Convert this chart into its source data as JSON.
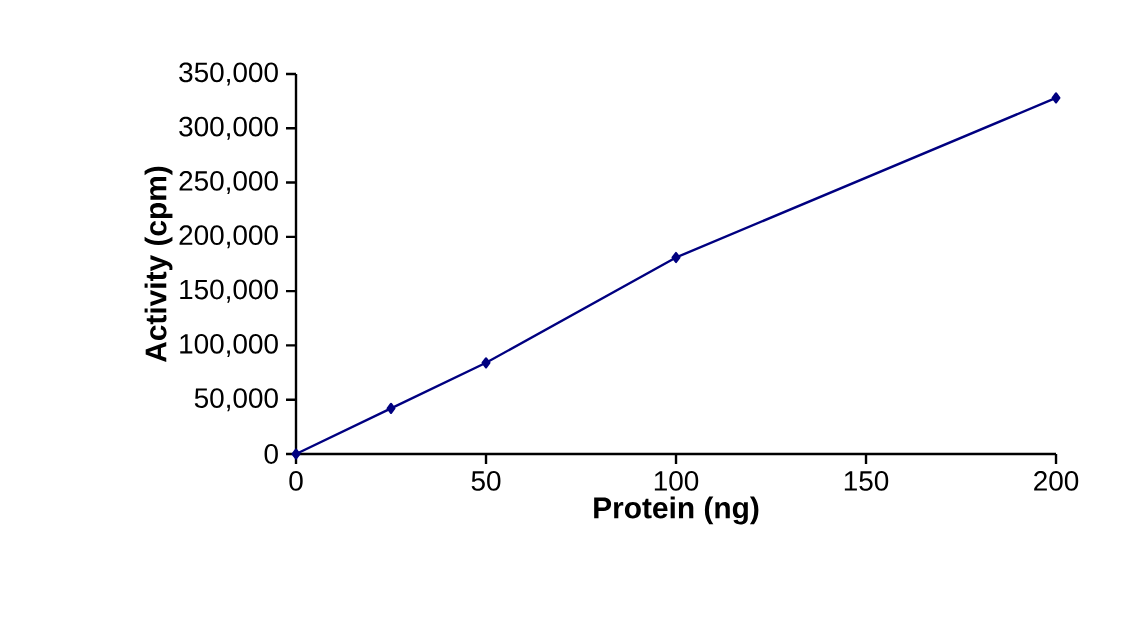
{
  "chart_data": {
    "type": "line",
    "xlabel": "Protein (ng)",
    "ylabel": "Activity (cpm)",
    "x": [
      0,
      25,
      50,
      100,
      200
    ],
    "series": [
      {
        "color": "#000080",
        "values": [
          0,
          42000,
          84000,
          181000,
          328000
        ]
      }
    ],
    "xlim": [
      0,
      200
    ],
    "ylim": [
      0,
      350000
    ],
    "xticks": [
      0,
      50,
      100,
      150,
      200
    ],
    "yticks": [
      {
        "value": 0,
        "label": "0"
      },
      {
        "value": 50000,
        "label": "50,000"
      },
      {
        "value": 100000,
        "label": "100,000"
      },
      {
        "value": 150000,
        "label": "150,000"
      },
      {
        "value": 200000,
        "label": "200,000"
      },
      {
        "value": 250000,
        "label": "250,000"
      },
      {
        "value": 300000,
        "label": "300,000"
      },
      {
        "value": 350000,
        "label": "350,000"
      }
    ],
    "marker": "diamond",
    "line_style": "solid"
  }
}
